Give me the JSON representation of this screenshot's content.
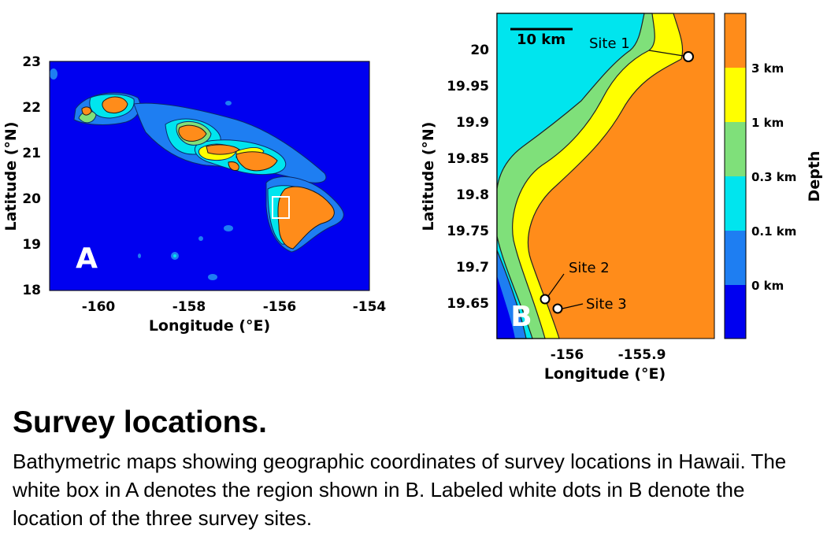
{
  "panel_a": {
    "letter": "A",
    "xlabel": "Longitude (°E)",
    "ylabel": "Latitude (°N)",
    "xticks": [
      "-160",
      "-158",
      "-156",
      "-154"
    ],
    "yticks": [
      "23",
      "22",
      "21",
      "20",
      "19",
      "18"
    ],
    "region_box": "white box marking region of panel B"
  },
  "panel_b": {
    "letter": "B",
    "xlabel": "Longitude (°E)",
    "ylabel": "Latitude (°N)",
    "xticks": [
      "-156",
      "-155.9"
    ],
    "yticks": [
      "20",
      "19.95",
      "19.9",
      "19.85",
      "19.8",
      "19.75",
      "19.7",
      "19.65"
    ],
    "scalebar": "10 km",
    "sites": [
      {
        "label": "Site 1"
      },
      {
        "label": "Site 2"
      },
      {
        "label": "Site 3"
      }
    ]
  },
  "colorbar": {
    "title": "Depth",
    "labels": [
      "3 km",
      "1 km",
      "0.3 km",
      "0.1 km",
      "0 km"
    ],
    "colors": [
      "#0000ff",
      "#1e7ef2",
      "#00e5ee",
      "#7fe07a",
      "#ffff00",
      "#ff8c1a"
    ]
  },
  "caption": {
    "title": "Survey locations.",
    "text": "Bathymetric maps showing geographic coordinates of survey locations in Hawaii. The white box in A denotes the region shown in B. Labeled white dots in B denote the location of the three survey sites."
  }
}
